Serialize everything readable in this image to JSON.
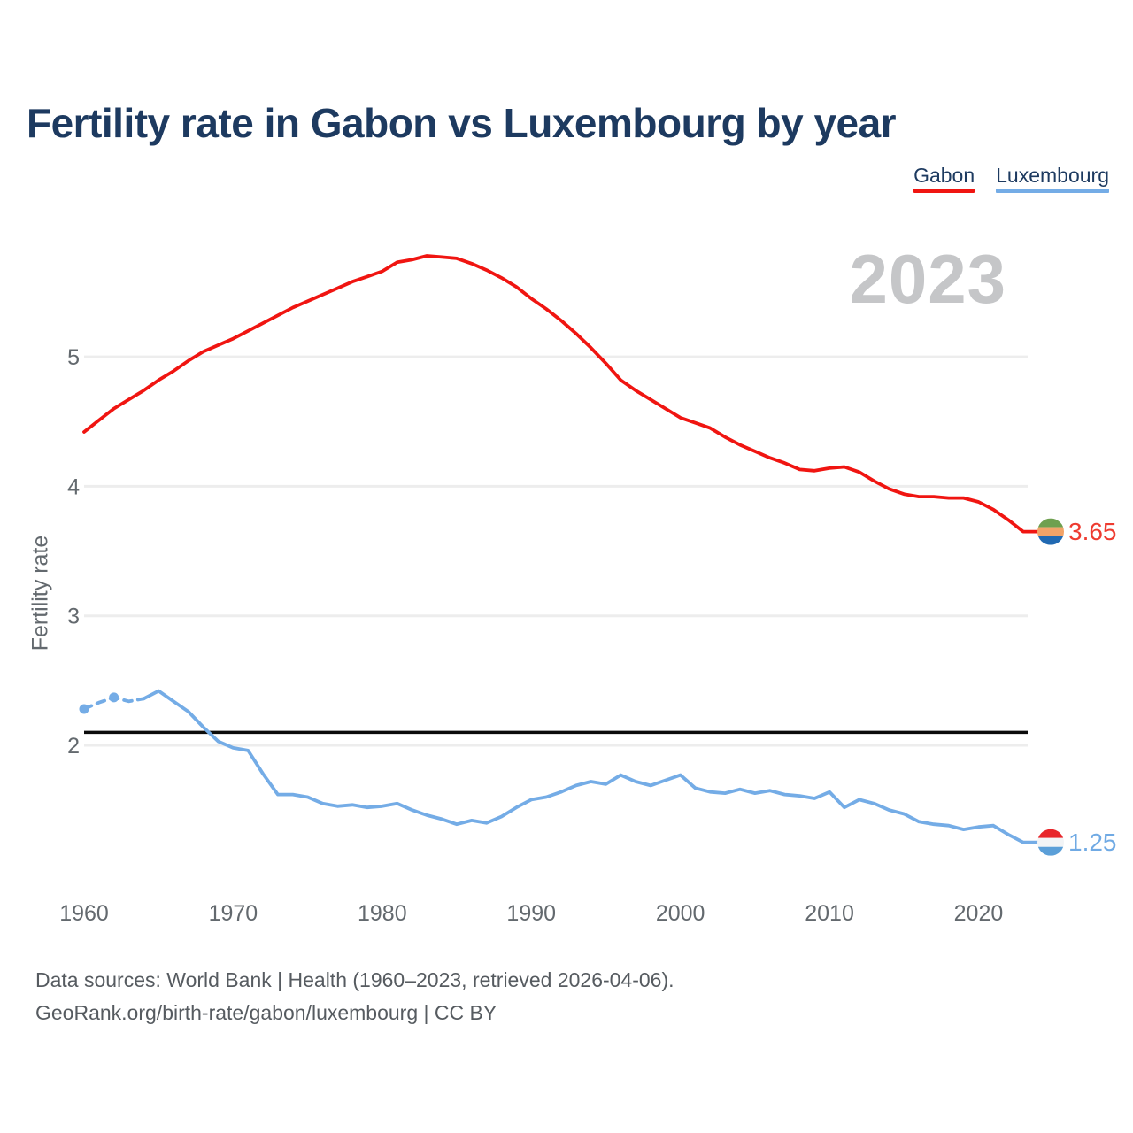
{
  "title": "Fertility rate in Gabon vs Luxembourg by year",
  "legend": [
    {
      "label": "Gabon",
      "color": "#f01511"
    },
    {
      "label": "Luxembourg",
      "color": "#74ace6"
    }
  ],
  "watermark": "2023",
  "y_axis_label": "Fertility rate",
  "end_labels": [
    {
      "series": "Gabon",
      "value": "3.65",
      "color": "#ee3b30"
    },
    {
      "series": "Luxembourg",
      "value": "1.25",
      "color": "#70aae4"
    }
  ],
  "footer": {
    "line1": "Data sources: World Bank | Health (1960–2023, retrieved 2026-04-06).",
    "line2": "GeoRank.org/birth-rate/gabon/luxembourg | CC BY"
  },
  "chart_data": {
    "type": "line",
    "title": "Fertility rate in Gabon vs Luxembourg by year",
    "xlabel": "",
    "ylabel": "Fertility rate",
    "x": [
      1960,
      1961,
      1962,
      1963,
      1964,
      1965,
      1966,
      1967,
      1968,
      1969,
      1970,
      1971,
      1972,
      1973,
      1974,
      1975,
      1976,
      1977,
      1978,
      1979,
      1980,
      1981,
      1982,
      1983,
      1984,
      1985,
      1986,
      1987,
      1988,
      1989,
      1990,
      1991,
      1992,
      1993,
      1994,
      1995,
      1996,
      1997,
      1998,
      1999,
      2000,
      2001,
      2002,
      2003,
      2004,
      2005,
      2006,
      2007,
      2008,
      2009,
      2010,
      2011,
      2012,
      2013,
      2014,
      2015,
      2016,
      2017,
      2018,
      2019,
      2020,
      2021,
      2022,
      2023
    ],
    "x_ticks": [
      1960,
      1970,
      1980,
      1990,
      2000,
      2010,
      2020
    ],
    "y_ticks": [
      5,
      4,
      3,
      2
    ],
    "ylim": [
      1.1,
      6.0
    ],
    "grid": "horizontal",
    "legend_position": "top-right",
    "reference_line": 2.1,
    "series": [
      {
        "name": "Gabon",
        "color": "#f01511",
        "last_value_label": "3.65",
        "flag": [
          "#6ea04f",
          "#f2a368",
          "#2169b2"
        ],
        "values": [
          4.42,
          4.51,
          4.6,
          4.67,
          4.74,
          4.82,
          4.89,
          4.97,
          5.04,
          5.09,
          5.14,
          5.2,
          5.26,
          5.32,
          5.38,
          5.43,
          5.48,
          5.53,
          5.58,
          5.62,
          5.66,
          5.73,
          5.75,
          5.78,
          5.77,
          5.76,
          5.72,
          5.67,
          5.61,
          5.54,
          5.45,
          5.37,
          5.28,
          5.18,
          5.07,
          4.95,
          4.82,
          4.74,
          4.67,
          4.6,
          4.53,
          4.49,
          4.45,
          4.38,
          4.32,
          4.27,
          4.22,
          4.18,
          4.13,
          4.12,
          4.14,
          4.15,
          4.11,
          4.04,
          3.98,
          3.94,
          3.92,
          3.92,
          3.91,
          3.91,
          3.88,
          3.82,
          3.74,
          3.65
        ]
      },
      {
        "name": "Luxembourg",
        "color": "#74ace6",
        "last_value_label": "1.25",
        "flag": [
          "#e8262b",
          "#f2f4f6",
          "#5b9fd8"
        ],
        "dashed_until": 1964,
        "markers_at": [
          1960,
          1962
        ],
        "values": [
          2.28,
          2.33,
          2.37,
          2.34,
          2.36,
          2.42,
          2.34,
          2.26,
          2.14,
          2.03,
          1.98,
          1.96,
          1.78,
          1.62,
          1.62,
          1.6,
          1.55,
          1.53,
          1.54,
          1.52,
          1.53,
          1.55,
          1.5,
          1.46,
          1.43,
          1.39,
          1.42,
          1.4,
          1.45,
          1.52,
          1.58,
          1.6,
          1.64,
          1.69,
          1.72,
          1.7,
          1.77,
          1.72,
          1.69,
          1.73,
          1.77,
          1.67,
          1.64,
          1.63,
          1.66,
          1.63,
          1.65,
          1.62,
          1.61,
          1.59,
          1.64,
          1.52,
          1.58,
          1.55,
          1.5,
          1.47,
          1.41,
          1.39,
          1.38,
          1.35,
          1.37,
          1.38,
          1.31,
          1.25
        ]
      }
    ]
  }
}
